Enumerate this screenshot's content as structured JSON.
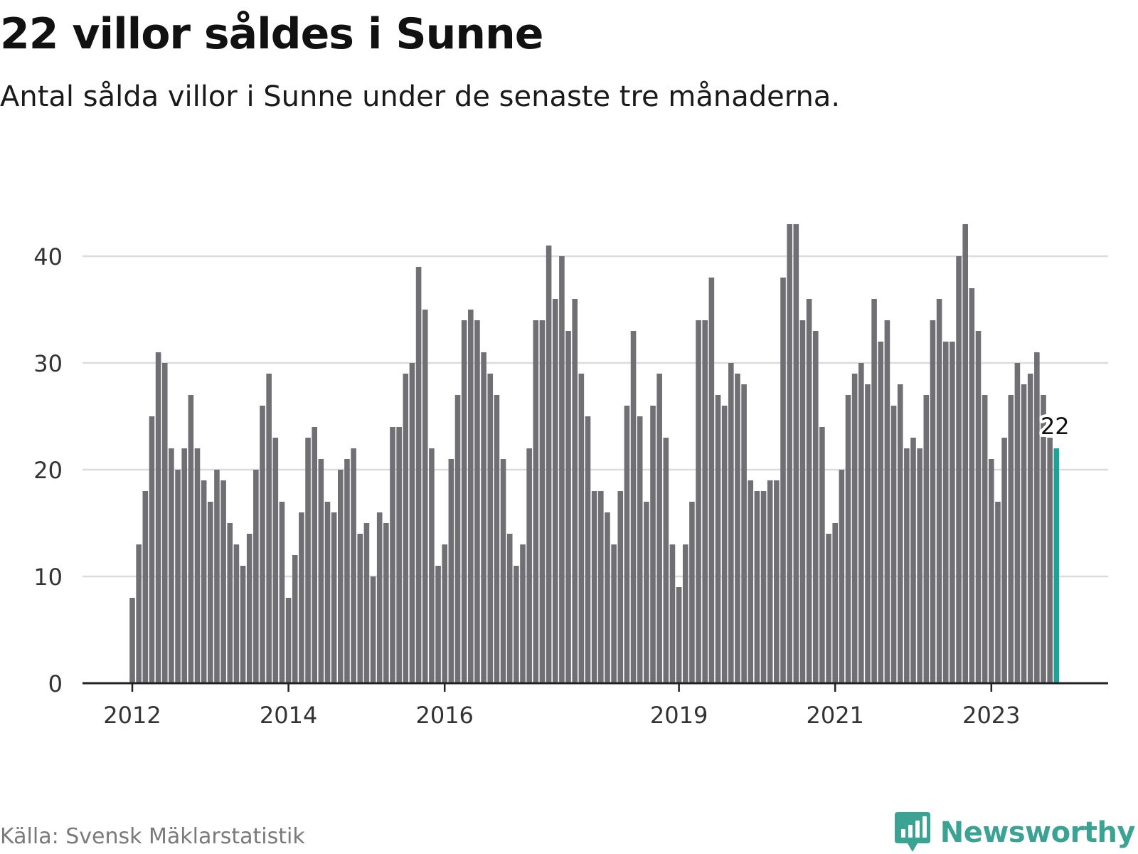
{
  "title": "22 villor såldes i Sunne",
  "subtitle": "Antal sålda villor i Sunne under de senaste tre månaderna.",
  "source": "Källa: Svensk Mäklarstatistik",
  "brand": {
    "name": "Newsworthy",
    "logo_icon": "bar-chart-bubble-icon"
  },
  "colors": {
    "bar": "#707074",
    "highlight": "#1ba39a",
    "grid": "#dcdcdc",
    "axis": "#222222",
    "brand": "#3aa394"
  },
  "chart_data": {
    "type": "bar",
    "grid": true,
    "ylim": [
      0,
      43
    ],
    "y_ticks": [
      "0",
      "10",
      "20",
      "30",
      "40"
    ],
    "x_ticks": [
      {
        "label": "2012",
        "month": "2012-01"
      },
      {
        "label": "2014",
        "month": "2014-01"
      },
      {
        "label": "2016",
        "month": "2016-01"
      },
      {
        "label": "2019",
        "month": "2019-01"
      },
      {
        "label": "2021",
        "month": "2021-01"
      },
      {
        "label": "2023",
        "month": "2023-01"
      }
    ],
    "first_month": "2012-01",
    "last_month": "2023-11",
    "highlight_label": "22",
    "values": [
      8,
      13,
      18,
      25,
      31,
      30,
      22,
      20,
      22,
      27,
      22,
      19,
      17,
      20,
      19,
      15,
      13,
      11,
      14,
      20,
      26,
      29,
      23,
      17,
      8,
      12,
      16,
      23,
      24,
      21,
      17,
      16,
      20,
      21,
      22,
      14,
      15,
      10,
      16,
      15,
      24,
      24,
      29,
      30,
      39,
      35,
      22,
      11,
      13,
      21,
      27,
      34,
      35,
      34,
      31,
      29,
      27,
      21,
      14,
      11,
      13,
      22,
      34,
      34,
      41,
      36,
      40,
      33,
      36,
      29,
      25,
      18,
      18,
      16,
      13,
      18,
      26,
      33,
      25,
      17,
      26,
      29,
      23,
      13,
      9,
      13,
      17,
      34,
      34,
      38,
      27,
      26,
      30,
      29,
      28,
      19,
      18,
      18,
      19,
      19,
      38,
      43,
      43,
      34,
      36,
      33,
      24,
      14,
      15,
      20,
      27,
      29,
      30,
      28,
      36,
      32,
      34,
      26,
      28,
      22,
      23,
      22,
      27,
      34,
      36,
      32,
      32,
      40,
      43,
      37,
      33,
      27,
      21,
      17,
      23,
      27,
      30,
      28,
      29,
      31,
      27,
      23,
      22
    ]
  }
}
